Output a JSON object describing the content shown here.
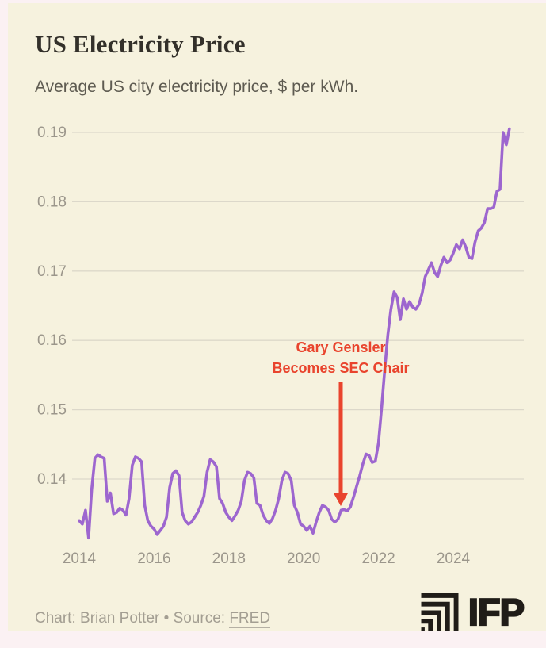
{
  "header": {
    "title": "US Electricity Price",
    "subtitle": "Average US city electricity price, $ per kWh."
  },
  "footer": {
    "credit": "Chart: Brian Potter",
    "bullet": "•",
    "source_label": "Source:",
    "source_link": "FRED",
    "logo_text": "IFP"
  },
  "colors": {
    "page_background": "#fbf1f3",
    "card_background": "#f6f2de",
    "title": "#33302a",
    "subtitle": "#5e5b51",
    "axis_labels": "#9b968b",
    "gridline": "#dcd8ca",
    "line": "#9d66cf",
    "annotation_red": "#e9442d",
    "footer_text": "#a39e92",
    "logo_black": "#201d18"
  },
  "chart_data": {
    "type": "line",
    "title": "US Electricity Price",
    "subtitle": "Average US city electricity price, $ per kWh.",
    "ylabel": "$ per kWh",
    "xlabel": "",
    "grid": "horizontal-only",
    "legend": "none",
    "x_start_year": 2014,
    "x_step_months": 1,
    "xticks": [
      2014,
      2016,
      2018,
      2020,
      2022,
      2024
    ],
    "yticks": [
      0.14,
      0.15,
      0.16,
      0.17,
      0.18,
      0.19
    ],
    "ytick_labels": [
      "0.14",
      "0.15",
      "0.16",
      "0.17",
      "0.18",
      "0.19"
    ],
    "ylim": [
      0.131,
      0.192
    ],
    "xlim_years": [
      2013.9,
      2025.75
    ],
    "series": [
      {
        "name": "Average US city electricity price ($/kWh), monthly from Jan 2014",
        "values": [
          0.134,
          0.1335,
          0.1355,
          0.1315,
          0.1385,
          0.143,
          0.1435,
          0.1432,
          0.143,
          0.1368,
          0.138,
          0.135,
          0.1352,
          0.1358,
          0.1355,
          0.1348,
          0.1372,
          0.142,
          0.1432,
          0.143,
          0.1425,
          0.1362,
          0.134,
          0.1332,
          0.1328,
          0.132,
          0.1326,
          0.1332,
          0.1345,
          0.1388,
          0.1408,
          0.1412,
          0.1405,
          0.1352,
          0.134,
          0.1335,
          0.1338,
          0.1345,
          0.1352,
          0.1362,
          0.1375,
          0.141,
          0.1428,
          0.1425,
          0.1418,
          0.1372,
          0.1365,
          0.1352,
          0.1345,
          0.134,
          0.1347,
          0.1355,
          0.1368,
          0.1398,
          0.141,
          0.1408,
          0.1402,
          0.1365,
          0.1362,
          0.1348,
          0.134,
          0.1336,
          0.1343,
          0.1355,
          0.1372,
          0.1398,
          0.141,
          0.1408,
          0.1398,
          0.1362,
          0.1352,
          0.1335,
          0.1332,
          0.1326,
          0.1332,
          0.1322,
          0.1338,
          0.1352,
          0.1362,
          0.136,
          0.1355,
          0.1342,
          0.1338,
          0.1342,
          0.1355,
          0.1356,
          0.1354,
          0.136,
          0.1374,
          0.139,
          0.1405,
          0.1422,
          0.1436,
          0.1434,
          0.1424,
          0.1426,
          0.1452,
          0.1502,
          0.1558,
          0.1608,
          0.1645,
          0.167,
          0.1662,
          0.163,
          0.166,
          0.1645,
          0.1656,
          0.1648,
          0.1645,
          0.1652,
          0.1668,
          0.1692,
          0.1702,
          0.1712,
          0.1698,
          0.1692,
          0.1708,
          0.172,
          0.1712,
          0.1716,
          0.1726,
          0.1738,
          0.1732,
          0.1745,
          0.1735,
          0.172,
          0.1718,
          0.1742,
          0.1758,
          0.1762,
          0.177,
          0.179,
          0.179,
          0.1792,
          0.1815,
          0.1818,
          0.19,
          0.1882,
          0.1905
        ]
      }
    ],
    "annotation": {
      "line1": "Gary Gensler",
      "line2": "Becomes SEC Chair",
      "points_at": "January 2021, value ≈ 0.1355",
      "arrow": "vertical red arrow pointing down at the line",
      "color": "#e9442d"
    }
  }
}
